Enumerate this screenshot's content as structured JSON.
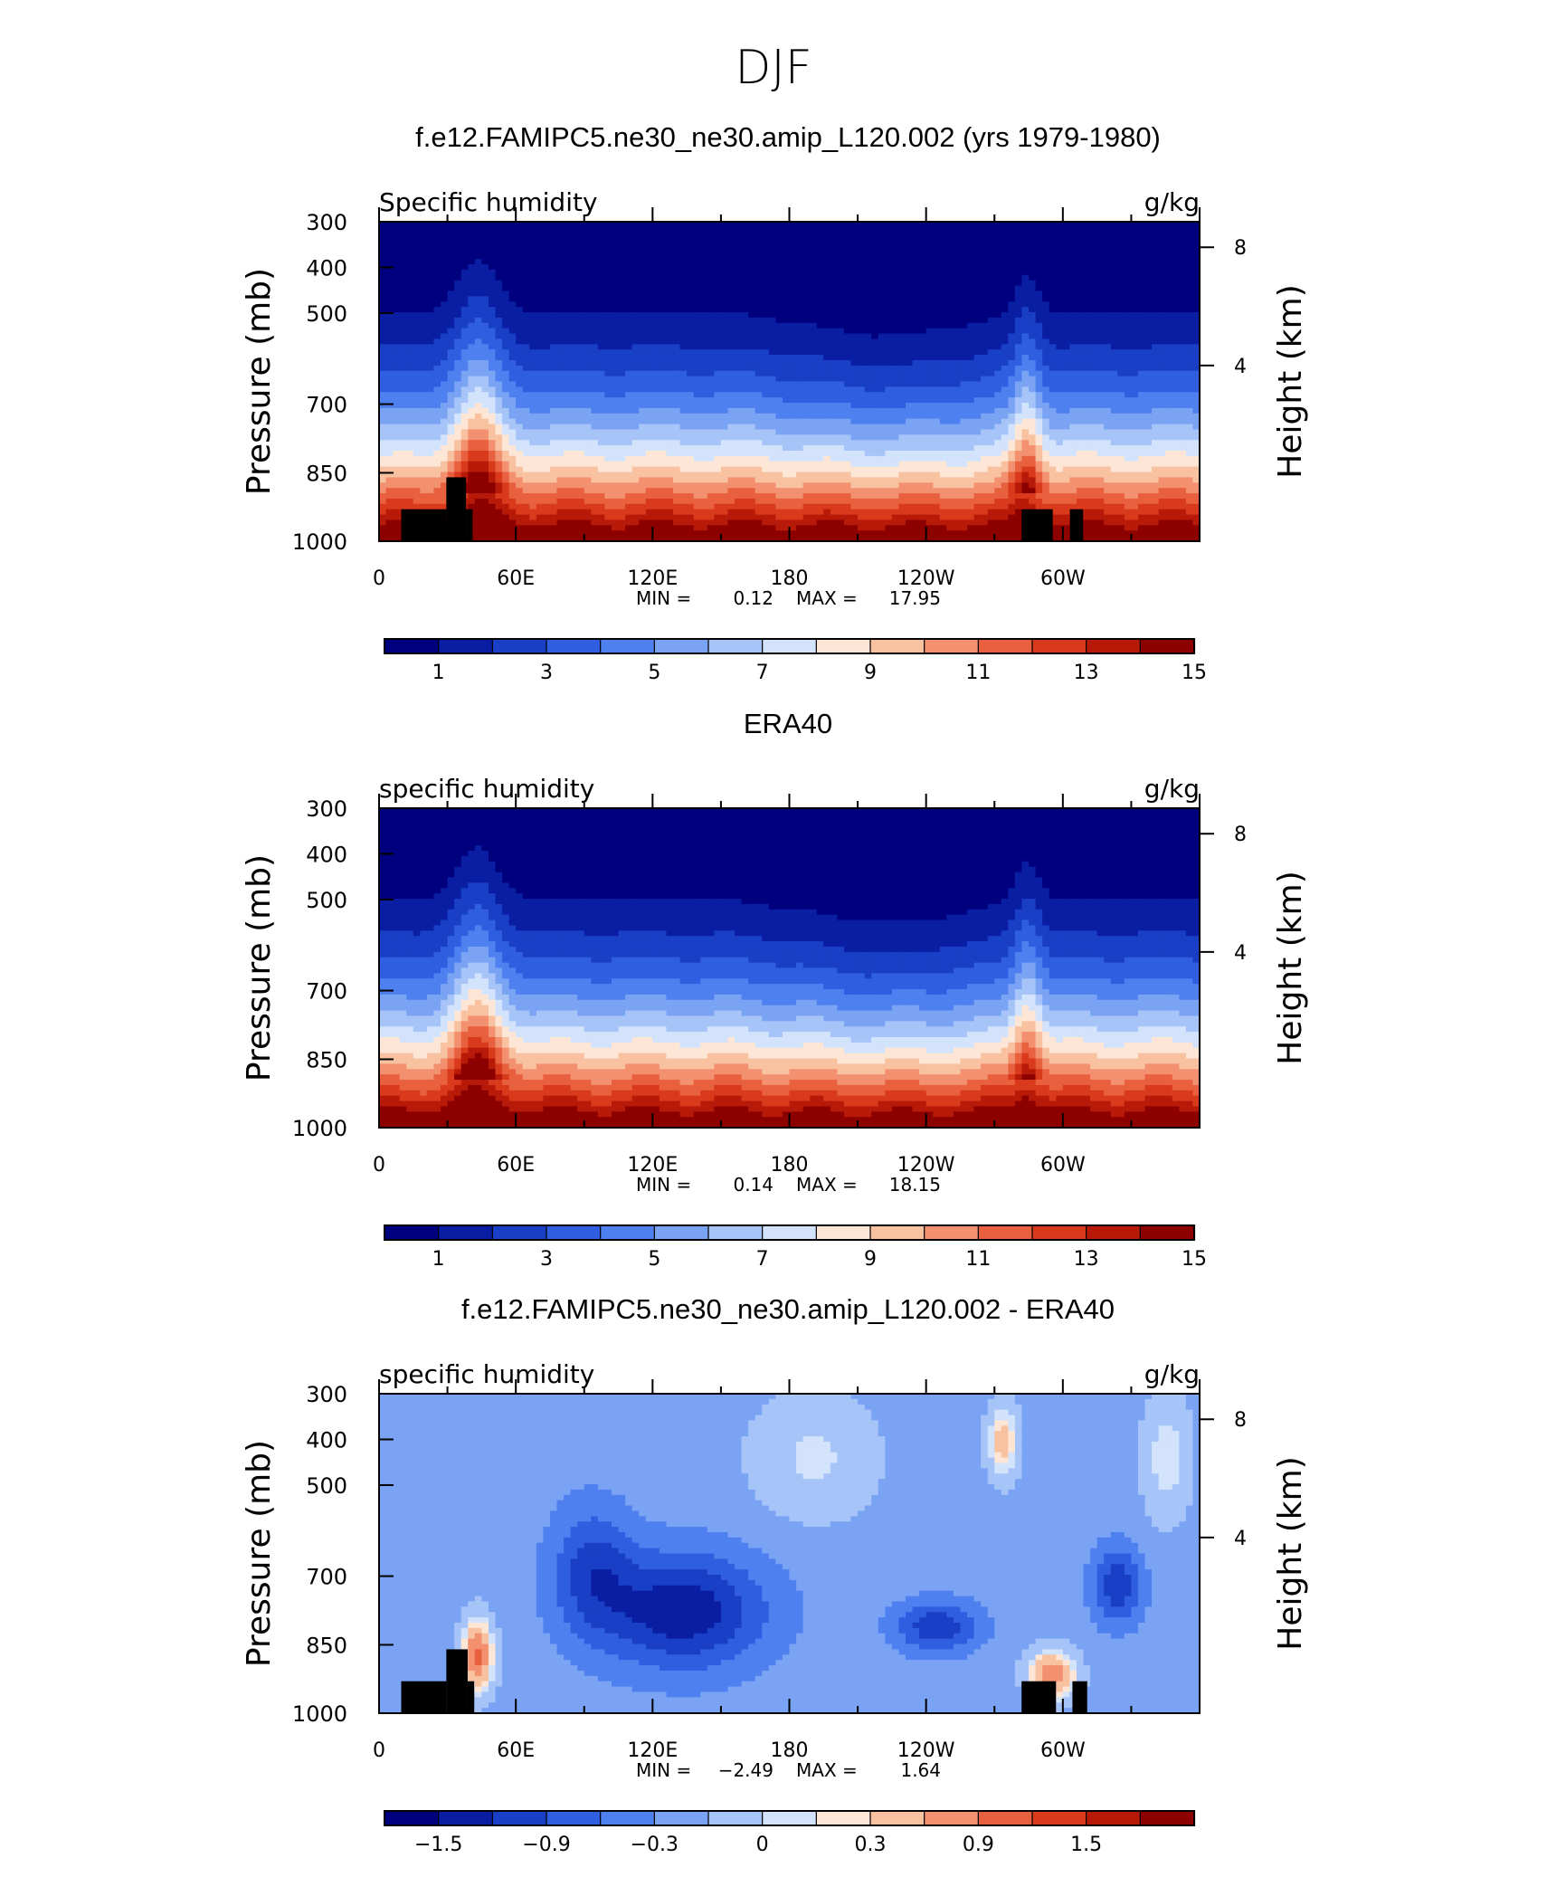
{
  "figure": {
    "title": "DJF",
    "colors": {
      "abs_palette": [
        "#00007f",
        "#0a1ea3",
        "#1a3fc7",
        "#2f5fe0",
        "#4f80f0",
        "#7aa3f4",
        "#a6c4f8",
        "#d2e3fb",
        "#fde6d6",
        "#f8c1a0",
        "#f29070",
        "#e8603e",
        "#d93a1c",
        "#b81a0a",
        "#8c0000"
      ],
      "diff_palette": [
        "#00007f",
        "#0a1ea3",
        "#1a3fc7",
        "#2f5fe0",
        "#4f80f0",
        "#7aa3f4",
        "#a6c4f8",
        "#d2e3fb",
        "#fde6d6",
        "#f8c1a0",
        "#f29070",
        "#e8603e",
        "#d93a1c",
        "#b81a0a",
        "#8c0000"
      ],
      "topography": "#000000"
    }
  },
  "chart_data": [
    {
      "type": "heatmap",
      "title": "f.e12.FAMIPC5.ne30_ne30.amip_L120.002 (yrs 1979-1980)",
      "left_label": "Specific humidity",
      "right_label": "g/kg",
      "ylabel": "Pressure (mb)",
      "ylabel2": "Height (km)",
      "x_ticks": [
        "0",
        "60E",
        "120E",
        "180",
        "120W",
        "60W"
      ],
      "y_ticks": [
        "300",
        "400",
        "500",
        "700",
        "850",
        "1000"
      ],
      "y2_ticks": [
        "8",
        "4"
      ],
      "stats": {
        "min_label": "MIN =",
        "min": "0.12",
        "max_label": "MAX =",
        "max": "17.95"
      },
      "colorbar_labels": [
        "1",
        "3",
        "5",
        "7",
        "9",
        "11",
        "13",
        "15"
      ],
      "xlim": [
        0,
        360
      ],
      "ylim": [
        1000,
        300
      ]
    },
    {
      "type": "heatmap",
      "title": "ERA40",
      "left_label": "specific humidity",
      "right_label": "g/kg",
      "ylabel": "Pressure (mb)",
      "ylabel2": "Height (km)",
      "x_ticks": [
        "0",
        "60E",
        "120E",
        "180",
        "120W",
        "60W"
      ],
      "y_ticks": [
        "300",
        "400",
        "500",
        "700",
        "850",
        "1000"
      ],
      "y2_ticks": [
        "8",
        "4"
      ],
      "stats": {
        "min_label": "MIN =",
        "min": "0.14",
        "max_label": "MAX =",
        "max": "18.15"
      },
      "colorbar_labels": [
        "1",
        "3",
        "5",
        "7",
        "9",
        "11",
        "13",
        "15"
      ],
      "xlim": [
        0,
        360
      ],
      "ylim": [
        1000,
        300
      ]
    },
    {
      "type": "heatmap",
      "title": "f.e12.FAMIPC5.ne30_ne30.amip_L120.002 - ERA40",
      "left_label": "specific humidity",
      "right_label": "g/kg",
      "ylabel": "Pressure (mb)",
      "ylabel2": "Height (km)",
      "x_ticks": [
        "0",
        "60E",
        "120E",
        "180",
        "120W",
        "60W"
      ],
      "y_ticks": [
        "300",
        "400",
        "500",
        "700",
        "850",
        "1000"
      ],
      "y2_ticks": [
        "8",
        "4"
      ],
      "stats": {
        "min_label": "MIN =",
        "min": "−2.49",
        "max_label": "MAX =",
        "max": "1.64"
      },
      "colorbar_labels": [
        "−1.5",
        "−0.9",
        "−0.3",
        "0",
        "0.3",
        "0.9",
        "1.5"
      ],
      "xlim": [
        0,
        360
      ],
      "ylim": [
        1000,
        300
      ]
    }
  ]
}
